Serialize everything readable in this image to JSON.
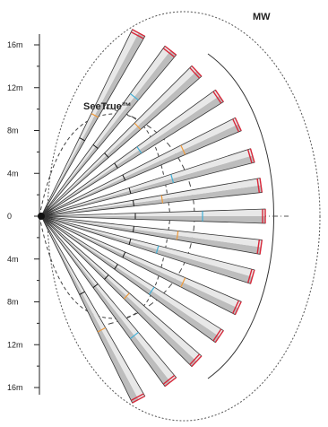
{
  "zones": {
    "mw_label": "MW",
    "seetrue_label": "SeeTrue™"
  },
  "scale": {
    "ticks": [
      "16m",
      "12m",
      "8m",
      "4m",
      "0",
      "4m",
      "8m",
      "12m",
      "16m"
    ]
  },
  "beams": {
    "angles_deg": [
      -62,
      -52,
      -43,
      -34,
      -25,
      -16,
      -8,
      0,
      8,
      16,
      25,
      34,
      43,
      52,
      62
    ],
    "colors": {
      "fill_dark": "#bdbdbd",
      "fill_light": "#e8e8e8",
      "outline": "#333333",
      "tip_red": "#d8283a",
      "marker_blue": "#3fb0d8",
      "marker_orange": "#f09a3a"
    }
  },
  "colors": {
    "ink": "#222222",
    "dashed": "#444444"
  }
}
